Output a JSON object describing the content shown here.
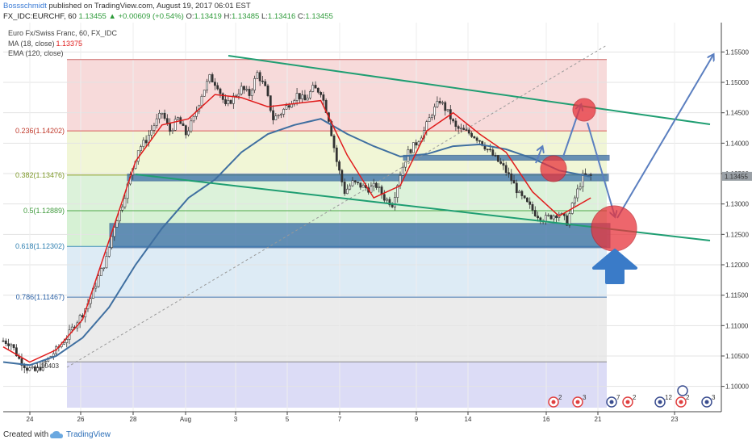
{
  "header": {
    "author": "Bossschmidt",
    "published_text": "published on TradingView.com, August 19, 2017 06:01 EST",
    "symbol": "FX_IDC:EURCHF, 60",
    "last": "1.13455",
    "change": "▲ +0.00609 (+0.54%)",
    "o_label": "O:",
    "o_val": "1.13419",
    "h_label": "H:",
    "h_val": "1.13485",
    "l_label": "L:",
    "l_val": "1.13416",
    "c_label": "C:",
    "c_val": "1.13455"
  },
  "legend": {
    "instrument": "Euro Fx/Swiss Franc, 60, FX_IDC",
    "ma": "MA (18, close)",
    "ma_value": "1.13375",
    "ema": "EMA (120, close)"
  },
  "colors": {
    "ma": "#e01c1c",
    "ema": "#3f6fa0",
    "channel": "#1f9e72",
    "zone": "#3a6ea8",
    "arrow": "#5b7fc0",
    "circle": "#e8343c",
    "price_tag": "#9aa0a6"
  },
  "chart_data": {
    "type": "line",
    "x_ticks": [
      "24",
      "26",
      "28",
      "Aug",
      "3",
      "5",
      "7",
      "9",
      "14",
      "16",
      "21",
      "23",
      "28"
    ],
    "y_ticks": [
      "1.15500",
      "1.15000",
      "1.14500",
      "1.14000",
      "1.13500",
      "1.13000",
      "1.12500",
      "1.12000",
      "1.11500",
      "1.11000",
      "1.10500",
      "1.10000"
    ],
    "ylim": [
      1.0965,
      1.1585
    ],
    "current_price": "1.13455",
    "chart_label_pre": "1.10403",
    "fib_levels": [
      {
        "label": "0.236(1.14202)",
        "price": 1.14202
      },
      {
        "label": "0.382(1.13476)",
        "price": 1.13476
      },
      {
        "label": "0.5(1.12889)",
        "price": 1.12889
      },
      {
        "label": "0.618(1.12302)",
        "price": 1.12302
      },
      {
        "label": "0.786(1.11467)",
        "price": 1.11467
      }
    ],
    "fib_top": 1.15375,
    "fib_bottom": 1.10403,
    "price": {
      "x": [
        0,
        3,
        6,
        9,
        12,
        15,
        18,
        21,
        24,
        27,
        30,
        33,
        36,
        39,
        42,
        45,
        48,
        51,
        54,
        57,
        60,
        63,
        66,
        69,
        72,
        75,
        78,
        81,
        84,
        87,
        90,
        93,
        96,
        99,
        102,
        105,
        108,
        111,
        114,
        117,
        120,
        123,
        126,
        129,
        132,
        135,
        138,
        141,
        144,
        147,
        150,
        153,
        156,
        159,
        162,
        165,
        168,
        171,
        174,
        177,
        180,
        183,
        186,
        189,
        192,
        195,
        198,
        201,
        204,
        207,
        210,
        213,
        216,
        219,
        222
      ],
      "y": [
        1.1075,
        1.107,
        1.1045,
        1.103,
        1.1025,
        1.1035,
        1.105,
        1.1065,
        1.108,
        1.1102,
        1.112,
        1.1145,
        1.118,
        1.121,
        1.1265,
        1.13,
        1.1345,
        1.139,
        1.1405,
        1.143,
        1.145,
        1.142,
        1.144,
        1.1415,
        1.144,
        1.148,
        1.1508,
        1.1495,
        1.146,
        1.1475,
        1.149,
        1.148,
        1.1515,
        1.149,
        1.144,
        1.145,
        1.1465,
        1.148,
        1.147,
        1.149,
        1.1485,
        1.144,
        1.137,
        1.132,
        1.1335,
        1.133,
        1.1325,
        1.133,
        1.131,
        1.13,
        1.135,
        1.1385,
        1.14,
        1.142,
        1.145,
        1.147,
        1.145,
        1.1425,
        1.142,
        1.1415,
        1.1405,
        1.139,
        1.1375,
        1.136,
        1.134,
        1.1315,
        1.13,
        1.1285,
        1.1275,
        1.128,
        1.1285,
        1.127,
        1.131,
        1.1345,
        1.13455
      ]
    },
    "ma18": {
      "x": [
        0,
        10,
        20,
        30,
        40,
        50,
        60,
        70,
        80,
        90,
        100,
        110,
        120,
        130,
        140,
        150,
        160,
        170,
        180,
        190,
        200,
        210,
        222
      ],
      "y": [
        1.1065,
        1.104,
        1.106,
        1.111,
        1.124,
        1.137,
        1.143,
        1.144,
        1.148,
        1.1475,
        1.146,
        1.1465,
        1.147,
        1.138,
        1.131,
        1.133,
        1.142,
        1.145,
        1.1415,
        1.1385,
        1.132,
        1.128,
        1.131
      ]
    },
    "ema120": {
      "x": [
        0,
        10,
        20,
        30,
        40,
        50,
        60,
        70,
        80,
        90,
        100,
        110,
        120,
        130,
        140,
        150,
        160,
        170,
        180,
        190,
        200,
        210,
        222
      ],
      "y": [
        1.104,
        1.1035,
        1.105,
        1.108,
        1.113,
        1.12,
        1.126,
        1.131,
        1.134,
        1.1385,
        1.1415,
        1.143,
        1.144,
        1.1415,
        1.1395,
        1.1378,
        1.1382,
        1.1395,
        1.1398,
        1.139,
        1.1375,
        1.1355,
        1.1345
      ]
    }
  },
  "event_badges": [
    {
      "label": "2",
      "color": "#e04040"
    },
    {
      "label": "3",
      "color": "#e04040"
    },
    {
      "label": "7",
      "color": "#3a4d8f"
    },
    {
      "label": "2",
      "color": "#e04040"
    },
    {
      "label": "12",
      "color": "#3a4d8f"
    },
    {
      "label": "2",
      "color": "#e04040"
    },
    {
      "label": "3",
      "color": "#3a4d8f"
    }
  ],
  "footer": {
    "created": "Created with",
    "brand": "TradingView"
  }
}
